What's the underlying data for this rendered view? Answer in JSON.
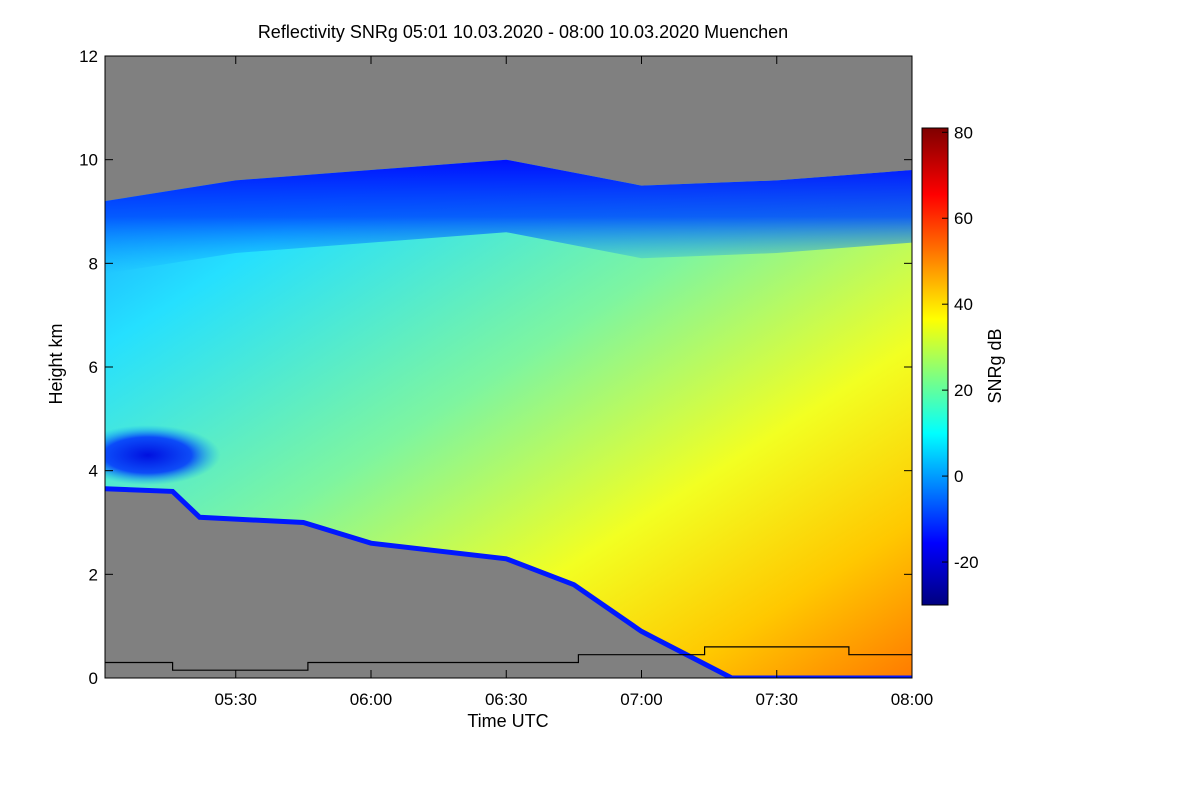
{
  "chart_data": {
    "type": "heatmap",
    "title": "Reflectivity SNRg   05:01 10.03.2020 - 08:00 10.03.2020 Muenchen",
    "xlabel": "Time UTC",
    "ylabel": "Height km",
    "xlim": [
      "05:01",
      "08:00"
    ],
    "ylim": [
      0,
      12
    ],
    "x_ticks": [
      "05:30",
      "06:00",
      "06:30",
      "07:00",
      "07:30",
      "08:00"
    ],
    "y_ticks": [
      0,
      2,
      4,
      6,
      8,
      10,
      12
    ],
    "colorbar": {
      "label": "SNRg dB",
      "range": [
        -30,
        81
      ],
      "ticks": [
        -20,
        0,
        20,
        40,
        60,
        80
      ]
    },
    "no_data_color": "#808080",
    "cloud_top_km": [
      {
        "time": "05:01",
        "height": 9.2
      },
      {
        "time": "05:30",
        "height": 9.6
      },
      {
        "time": "06:00",
        "height": 9.8
      },
      {
        "time": "06:30",
        "height": 10.0
      },
      {
        "time": "07:00",
        "height": 9.5
      },
      {
        "time": "07:30",
        "height": 9.6
      },
      {
        "time": "08:00",
        "height": 9.8
      }
    ],
    "echo_base_km": [
      {
        "time": "05:01",
        "height": 3.65
      },
      {
        "time": "05:16",
        "height": 3.6
      },
      {
        "time": "05:22",
        "height": 3.1
      },
      {
        "time": "05:45",
        "height": 3.0
      },
      {
        "time": "06:00",
        "height": 2.6
      },
      {
        "time": "06:30",
        "height": 2.3
      },
      {
        "time": "06:45",
        "height": 1.8
      },
      {
        "time": "07:00",
        "height": 0.9
      },
      {
        "time": "07:20",
        "height": 0.0
      },
      {
        "time": "08:00",
        "height": 0.0
      }
    ],
    "upper_layer_km": [
      {
        "time": "05:01",
        "height": 4.3
      },
      {
        "time": "05:20",
        "height": 4.3
      }
    ],
    "melting_layer_km": [
      {
        "time": "05:01",
        "height": 0.3
      },
      {
        "time": "05:16",
        "height": 0.3
      },
      {
        "time": "05:16",
        "height": 0.15
      },
      {
        "time": "05:46",
        "height": 0.15
      },
      {
        "time": "05:46",
        "height": 0.3
      },
      {
        "time": "06:46",
        "height": 0.3
      },
      {
        "time": "06:46",
        "height": 0.45
      },
      {
        "time": "07:14",
        "height": 0.45
      },
      {
        "time": "07:14",
        "height": 0.6
      },
      {
        "time": "07:46",
        "height": 0.6
      },
      {
        "time": "07:46",
        "height": 0.45
      },
      {
        "time": "08:00",
        "height": 0.45
      }
    ]
  }
}
